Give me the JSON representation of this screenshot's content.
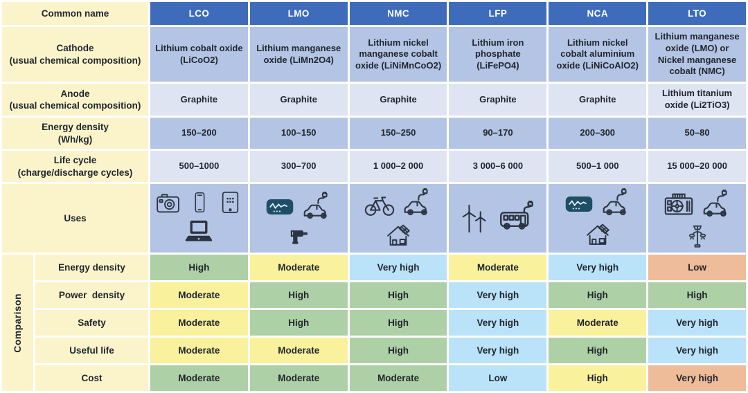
{
  "header": {
    "common_name": "Common name",
    "columns": [
      "LCO",
      "LMO",
      "NMC",
      "LFP",
      "NCA",
      "LTO"
    ]
  },
  "spec_rows": [
    {
      "id": "cathode",
      "label": "Cathode",
      "sublabel": "(usual chemical composition)",
      "shade": "medium",
      "values": [
        "Lithium cobalt oxide (LiCoO2)",
        "Lithium manganese oxide (LiMn2O4)",
        "Lithium nickel manganese cobalt oxide (LiNiMnCoO2)",
        "Lithium iron phosphate (LiFePO4)",
        "Lithium nickel cobalt aluminium oxide (LiNiCoAlO2)",
        "Lithium manganese oxide (LMO) or Nickel manganese cobalt (NMC)"
      ]
    },
    {
      "id": "anode",
      "label": "Anode",
      "sublabel": "(usual chemical composition)",
      "shade": "light",
      "values": [
        "Graphite",
        "Graphite",
        "Graphite",
        "Graphite",
        "Graphite",
        "Lithium titanium oxide (Li2TiO3)"
      ]
    },
    {
      "id": "energy-density",
      "label": "Energy density",
      "sublabel": "(Wh/kg)",
      "shade": "medium",
      "values": [
        "150–200",
        "100–150",
        "150–250",
        "90–170",
        "200–300",
        "50–80"
      ]
    },
    {
      "id": "life-cycle",
      "label": "Life cycle",
      "sublabel": "(charge/discharge cycles)",
      "shade": "light",
      "values": [
        "500–1000",
        "300–700",
        "1 000–2 000",
        "3 000–6 000",
        "500–1 000",
        "15 000–20 000"
      ]
    }
  ],
  "uses_row": {
    "label": "Uses",
    "shade": "medium",
    "icons": [
      [
        "camera-icon",
        "smartphone-icon",
        "tablet-icon",
        "laptop-icon"
      ],
      [
        "medical-monitor-icon",
        "electric-car-plug-icon",
        "power-drill-icon"
      ],
      [
        "bicycle-icon",
        "electric-car-plug-icon",
        "solar-house-icon"
      ],
      [
        "wind-turbine-icon",
        "electric-bus-plug-icon"
      ],
      [
        "medical-monitor-icon",
        "electric-car-plug-icon",
        "solar-house-icon"
      ],
      [
        "power-supply-icon",
        "electric-car-plug-icon",
        "solar-streetlight-icon"
      ]
    ]
  },
  "comparison": {
    "label": "Comparison",
    "rows": [
      {
        "id": "energy-density",
        "label": "Energy density",
        "cells": [
          {
            "text": "High",
            "tone": "green"
          },
          {
            "text": "Moderate",
            "tone": "yellow"
          },
          {
            "text": "Very high",
            "tone": "blue"
          },
          {
            "text": "Moderate",
            "tone": "yellow"
          },
          {
            "text": "Very high",
            "tone": "blue"
          },
          {
            "text": "Low",
            "tone": "orange"
          }
        ]
      },
      {
        "id": "power-density",
        "label": "Power  density",
        "cells": [
          {
            "text": "Moderate",
            "tone": "yellow"
          },
          {
            "text": "High",
            "tone": "green"
          },
          {
            "text": "High",
            "tone": "green"
          },
          {
            "text": "Very high",
            "tone": "blue"
          },
          {
            "text": "High",
            "tone": "green"
          },
          {
            "text": "High",
            "tone": "green"
          }
        ]
      },
      {
        "id": "safety",
        "label": "Safety",
        "cells": [
          {
            "text": "Moderate",
            "tone": "yellow"
          },
          {
            "text": "High",
            "tone": "green"
          },
          {
            "text": "High",
            "tone": "green"
          },
          {
            "text": "Very high",
            "tone": "blue"
          },
          {
            "text": "Moderate",
            "tone": "yellow"
          },
          {
            "text": "Very high",
            "tone": "blue"
          }
        ]
      },
      {
        "id": "useful-life",
        "label": "Useful life",
        "cells": [
          {
            "text": "Moderate",
            "tone": "yellow"
          },
          {
            "text": "Moderate",
            "tone": "yellow"
          },
          {
            "text": "High",
            "tone": "green"
          },
          {
            "text": "Very high",
            "tone": "blue"
          },
          {
            "text": "High",
            "tone": "green"
          },
          {
            "text": "Very high",
            "tone": "blue"
          }
        ]
      },
      {
        "id": "cost",
        "label": "Cost",
        "cells": [
          {
            "text": "Moderate",
            "tone": "green"
          },
          {
            "text": "Moderate",
            "tone": "green"
          },
          {
            "text": "Moderate",
            "tone": "green"
          },
          {
            "text": "Low",
            "tone": "blue"
          },
          {
            "text": "High",
            "tone": "yellow"
          },
          {
            "text": "Very high",
            "tone": "orange"
          }
        ]
      }
    ]
  },
  "colors": {
    "header_blue": "#3e6cba",
    "label_yellow": "#fbf4ca",
    "cell_blue_medium": "#b4c4e4",
    "cell_blue_light": "#dee4f2",
    "rating_green": "#aed0a6",
    "rating_yellow": "#faf19c",
    "rating_blue": "#bae2f8",
    "rating_orange": "#efbc99",
    "icon_stroke": "#2b3440",
    "icon_navy": "#1d4e66"
  },
  "chart_data": {
    "type": "table",
    "columns": [
      "Common name",
      "LCO",
      "LMO",
      "NMC",
      "LFP",
      "NCA",
      "LTO"
    ],
    "rows": [
      [
        "Cathode (usual chemical composition)",
        "Lithium cobalt oxide (LiCoO2)",
        "Lithium manganese oxide (LiMn2O4)",
        "Lithium nickel manganese cobalt oxide (LiNiMnCoO2)",
        "Lithium iron phosphate (LiFePO4)",
        "Lithium nickel cobalt aluminium oxide (LiNiCoAlO2)",
        "Lithium manganese oxide (LMO) or Nickel manganese cobalt (NMC)"
      ],
      [
        "Anode (usual chemical composition)",
        "Graphite",
        "Graphite",
        "Graphite",
        "Graphite",
        "Graphite",
        "Lithium titanium oxide (Li2TiO3)"
      ],
      [
        "Energy density (Wh/kg)",
        "150–200",
        "100–150",
        "150–250",
        "90–170",
        "200–300",
        "50–80"
      ],
      [
        "Life cycle (charge/discharge cycles)",
        "500–1000",
        "300–700",
        "1 000–2 000",
        "3 000–6 000",
        "500–1 000",
        "15 000–20 000"
      ],
      [
        "Uses",
        "camera, smartphone, tablet, laptop",
        "medical monitor, electric car, power drill",
        "e-bike, electric car, solar house",
        "wind turbines, electric bus",
        "medical monitor, electric car, solar house",
        "power supply unit, electric car, solar streetlight"
      ],
      [
        "Comparison – Energy density",
        "High",
        "Moderate",
        "Very high",
        "Moderate",
        "Very high",
        "Low"
      ],
      [
        "Comparison – Power density",
        "Moderate",
        "High",
        "High",
        "Very high",
        "High",
        "High"
      ],
      [
        "Comparison – Safety",
        "Moderate",
        "High",
        "High",
        "Very high",
        "Moderate",
        "Very high"
      ],
      [
        "Comparison – Useful life",
        "Moderate",
        "Moderate",
        "High",
        "Very high",
        "High",
        "Very high"
      ],
      [
        "Comparison – Cost",
        "Moderate",
        "Moderate",
        "Moderate",
        "Low",
        "High",
        "Very high"
      ]
    ]
  }
}
